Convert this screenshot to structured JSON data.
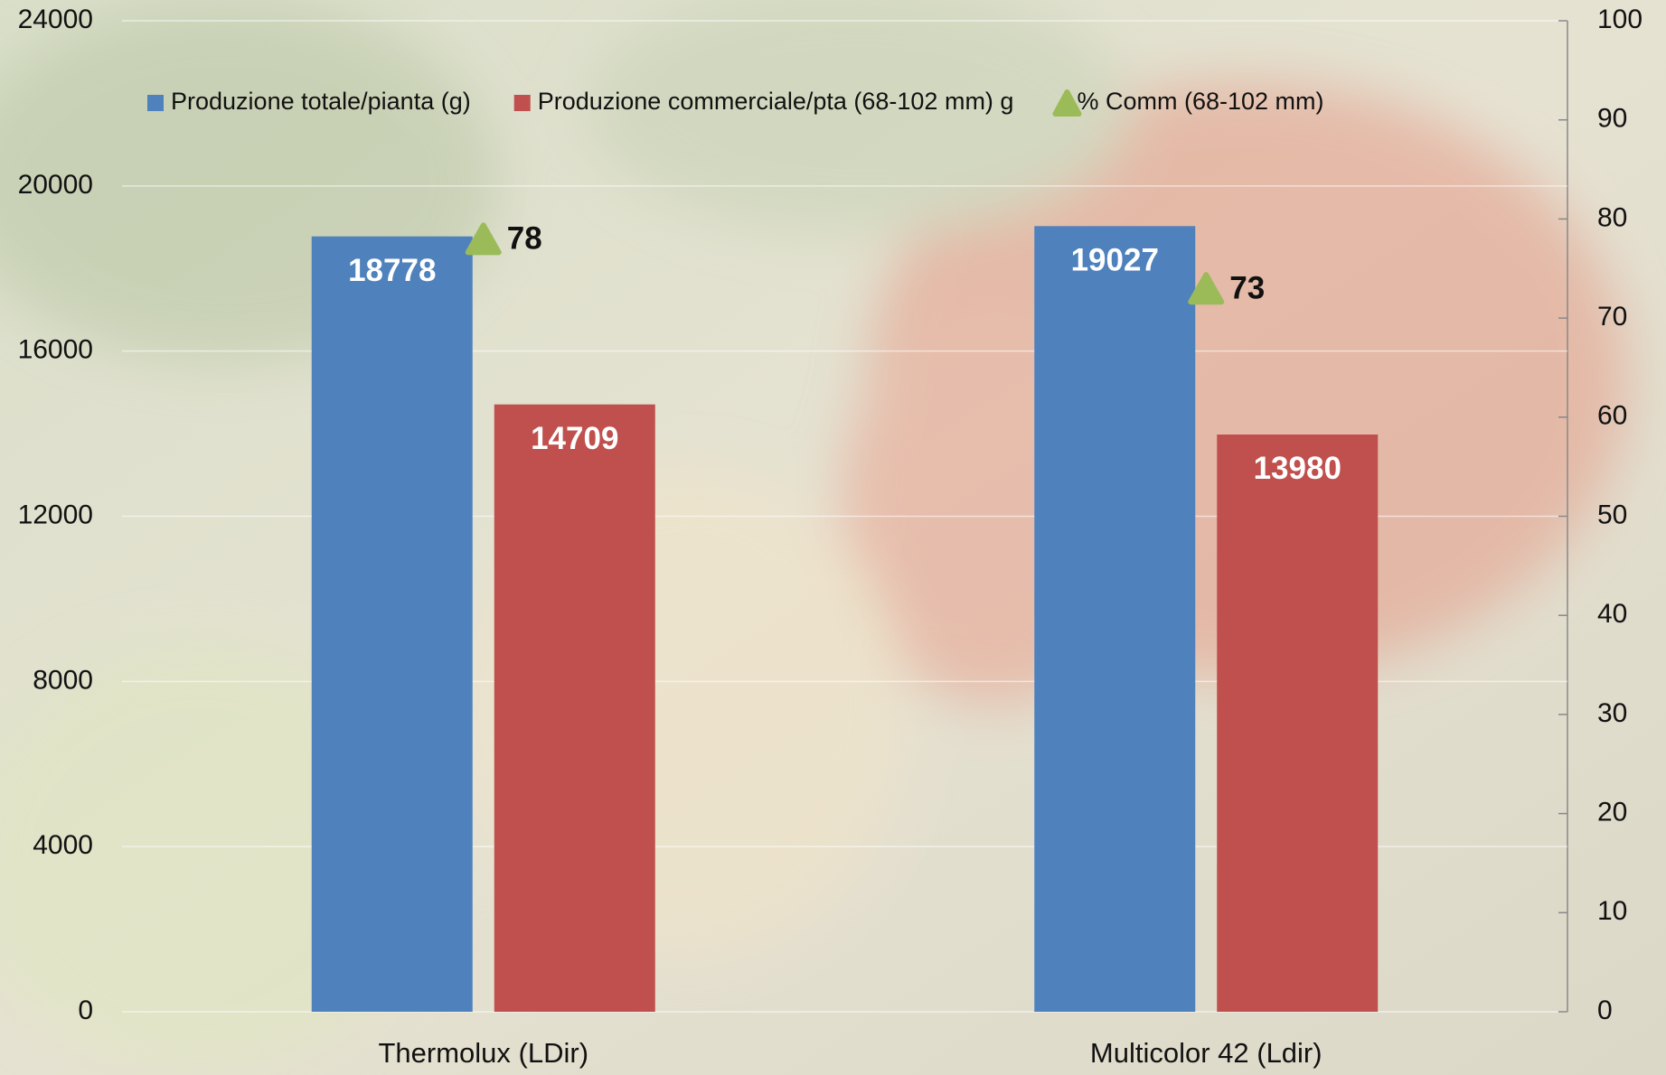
{
  "chart_data": {
    "type": "bar",
    "categories": [
      "Thermolux (LDir)",
      "Multicolor 42 (Ldir)"
    ],
    "series": [
      {
        "name": "Produzione totale/pianta (g)",
        "type": "bar",
        "color": "#4f81bd",
        "values": [
          18778,
          19027
        ]
      },
      {
        "name": "Produzione commerciale/pta (68-102 mm) g",
        "type": "bar",
        "color": "#c0504d",
        "values": [
          14709,
          13980
        ]
      },
      {
        "name": "% Comm (68-102 mm)",
        "type": "scatter",
        "marker": "triangle",
        "axis": "y2",
        "color": "#9bbb59",
        "values": [
          78,
          73
        ]
      }
    ],
    "ylim": [
      0,
      24000
    ],
    "yticks": [
      0,
      4000,
      8000,
      12000,
      16000,
      20000,
      24000
    ],
    "y2lim": [
      0,
      100
    ],
    "y2ticks": [
      0,
      10,
      20,
      30,
      40,
      50,
      60,
      70,
      80,
      90,
      100
    ],
    "grid": true,
    "legend": "top"
  }
}
